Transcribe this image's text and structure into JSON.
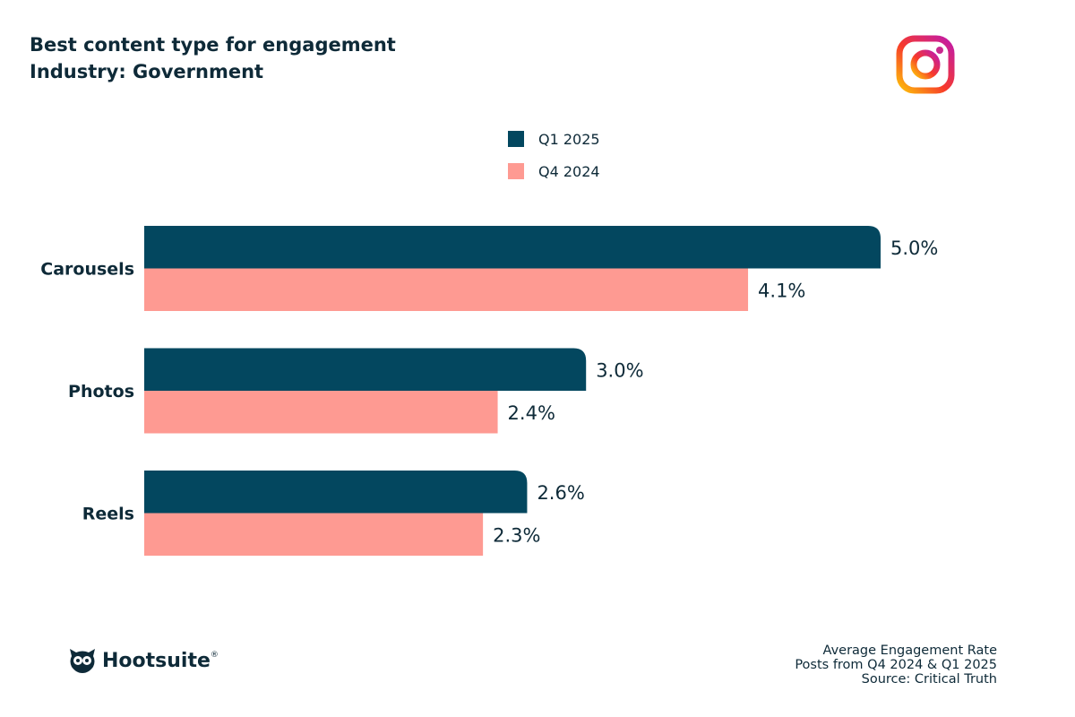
{
  "header": {
    "title": "Best content type for engagement",
    "subtitle": "Industry: Government"
  },
  "chart_data": {
    "type": "bar",
    "orientation": "horizontal",
    "categories": [
      "Carousels",
      "Photos",
      "Reels"
    ],
    "series": [
      {
        "name": "Q1 2025",
        "values": [
          5.0,
          3.0,
          2.6
        ],
        "labels": [
          "5.0%",
          "3.0%",
          "2.6%"
        ],
        "color": "#03475f"
      },
      {
        "name": "Q4 2024",
        "values": [
          4.1,
          2.4,
          2.3
        ],
        "labels": [
          "4.1%",
          "2.4%",
          "2.3%"
        ],
        "color": "#fe9a92"
      }
    ],
    "legend_placement": "top-center",
    "grid": false
  },
  "footer": {
    "line1": "Average Engagement Rate",
    "line2": "Posts from Q4 2024 & Q1 2025",
    "line3": "Source: Critical Truth"
  },
  "brand": {
    "name": "Hootsuite",
    "registered": "®",
    "icons": [
      "owl-logo-icon",
      "instagram-logo-icon"
    ]
  }
}
